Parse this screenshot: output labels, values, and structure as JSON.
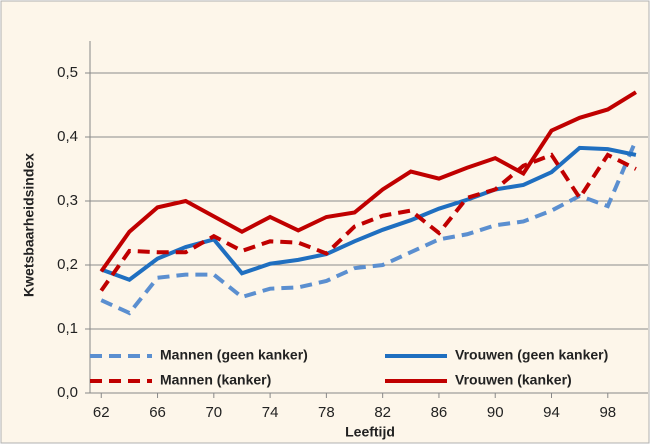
{
  "chart_data": {
    "type": "line",
    "ylabel": "Kwetsbaarheidsindex",
    "xlabel": "Leeftijd",
    "x": [
      62,
      64,
      66,
      68,
      70,
      72,
      74,
      76,
      78,
      80,
      82,
      84,
      86,
      88,
      90,
      92,
      94,
      96,
      98,
      100
    ],
    "series": [
      {
        "name": "Mannen (geen kanker)",
        "color": "#5b8fd0",
        "dashed": true,
        "values": [
          0.145,
          0.125,
          0.18,
          0.185,
          0.185,
          0.15,
          0.163,
          0.165,
          0.175,
          0.195,
          0.2,
          0.22,
          0.24,
          0.248,
          0.262,
          0.268,
          0.285,
          0.308,
          0.292,
          0.395
        ]
      },
      {
        "name": "Vrouwen (geen kanker)",
        "color": "#1f6fc0",
        "dashed": false,
        "values": [
          0.193,
          0.177,
          0.21,
          0.228,
          0.24,
          0.187,
          0.202,
          0.208,
          0.217,
          0.237,
          0.255,
          0.27,
          0.288,
          0.302,
          0.318,
          0.325,
          0.345,
          0.383,
          0.381,
          0.372
        ]
      },
      {
        "name": "Mannen (kanker)",
        "color": "#c00000",
        "dashed": true,
        "values": [
          0.16,
          0.222,
          0.22,
          0.22,
          0.245,
          0.222,
          0.237,
          0.235,
          0.218,
          0.26,
          0.277,
          0.285,
          0.25,
          0.305,
          0.318,
          0.355,
          0.372,
          0.305,
          0.372,
          0.35
        ]
      },
      {
        "name": "Vrouwen (kanker)",
        "color": "#c00000",
        "dashed": false,
        "values": [
          0.19,
          0.252,
          0.29,
          0.3,
          0.276,
          0.252,
          0.275,
          0.254,
          0.275,
          0.282,
          0.318,
          0.346,
          0.335,
          0.352,
          0.367,
          0.343,
          0.41,
          0.43,
          0.443,
          0.47
        ]
      }
    ],
    "xlim": [
      61.2,
      101
    ],
    "xticks": [
      62,
      66,
      70,
      74,
      78,
      82,
      86,
      90,
      94,
      98
    ],
    "ylim": [
      0,
      0.55
    ],
    "yticks": [
      {
        "value": 0,
        "label": "0,0"
      },
      {
        "value": 0.1,
        "label": "0,1"
      },
      {
        "value": 0.2,
        "label": "0,2"
      },
      {
        "value": 0.3,
        "label": "0,3"
      },
      {
        "value": 0.4,
        "label": "0,4"
      },
      {
        "value": 0.5,
        "label": "0,5"
      }
    ],
    "grid": true,
    "legend": "bottom"
  }
}
